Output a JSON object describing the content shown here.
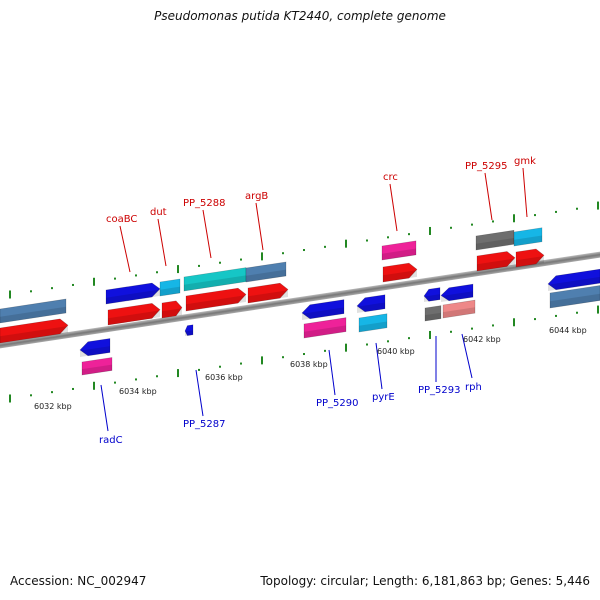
{
  "title": "Pseudomonas putida KT2440, complete genome",
  "footer": {
    "accession": "Accession: NC_002947",
    "summary": "Topology: circular; Length: 6,181,863 bp; Genes: 5,446"
  },
  "colors": {
    "forward_label": "#cc0000",
    "reverse_label": "#0000cc",
    "backbone": "#888888",
    "tick": "#228822"
  },
  "scale_ticks": [
    "6032 kbp",
    "6034 kbp",
    "6036 kbp",
    "6038 kbp",
    "6040 kbp",
    "6042 kbp",
    "6044 kbp"
  ],
  "forward_labels": [
    "coaBC",
    "dut",
    "PP_5288",
    "argB",
    "crc",
    "PP_5295",
    "gmk"
  ],
  "reverse_labels": [
    "radC",
    "PP_5287",
    "PP_5290",
    "pyrE",
    "PP_5293",
    "rph"
  ]
}
